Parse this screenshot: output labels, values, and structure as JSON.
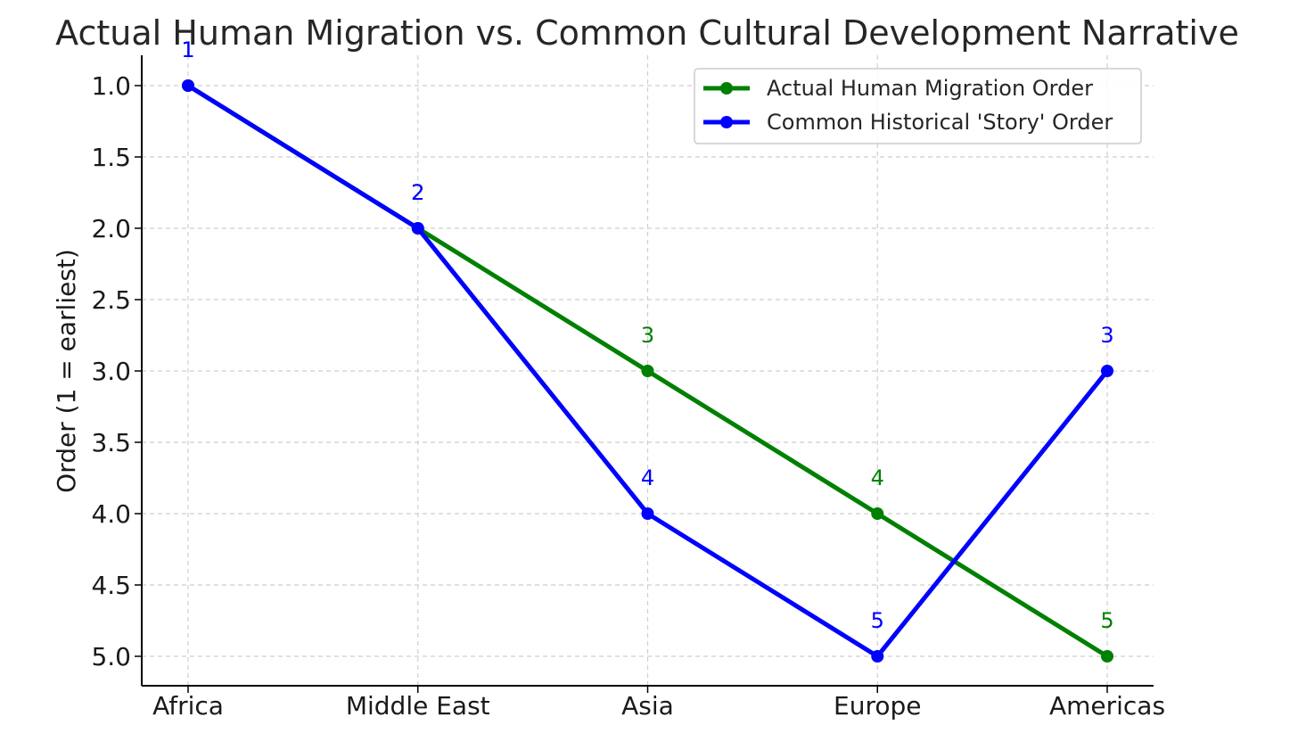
{
  "chart_data": {
    "type": "line",
    "title": "Actual Human Migration vs. Common Cultural Development Narrative",
    "xlabel": "",
    "ylabel": "Order (1 = earliest)",
    "categories": [
      "Africa",
      "Middle East",
      "Asia",
      "Europe",
      "Americas"
    ],
    "ylim": [
      5.2,
      0.8
    ],
    "y_inverted": true,
    "yticks": [
      "1.0",
      "1.5",
      "2.0",
      "2.5",
      "3.0",
      "3.5",
      "4.0",
      "4.5",
      "5.0"
    ],
    "grid": true,
    "legend_position": "top-right",
    "series": [
      {
        "name": "Actual Human Migration Order",
        "color": "#008000",
        "values": [
          1,
          2,
          3,
          4,
          5
        ],
        "point_labels": [
          "1",
          "2",
          "3",
          "4",
          "5"
        ]
      },
      {
        "name": "Common Historical 'Story' Order",
        "color": "#0000ff",
        "values": [
          1,
          2,
          4,
          5,
          3
        ],
        "point_labels": [
          "1",
          "2",
          "4",
          "5",
          "3"
        ]
      }
    ]
  }
}
